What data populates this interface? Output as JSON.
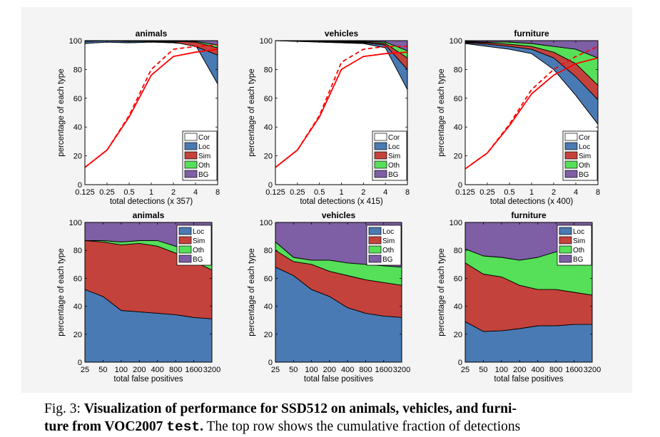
{
  "colors": {
    "cor": "#ffffff",
    "loc": "#4a7ab3",
    "sim": "#c4423c",
    "oth": "#56df59",
    "bg": "#7e5ea4",
    "line": "#ff0000"
  },
  "legend_top": [
    "Cor",
    "Loc",
    "Sim",
    "Oth",
    "BG"
  ],
  "legend_bottom": [
    "Loc",
    "Sim",
    "Oth",
    "BG"
  ],
  "caption": {
    "label": "Fig. 3:",
    "bold_part1": "Visualization of performance for SSD512 on animals, vehicles, and furni-",
    "bold_part2": "ture from VOC2007",
    "code": "test",
    "bold_end": ".",
    "rest": " The top row shows the cumulative fraction of detections"
  },
  "chart_data": [
    {
      "type": "area",
      "title": "animals",
      "xlabel": "total detections (x 357)",
      "ylabel": "percentage of each type",
      "x_scale": "log2",
      "xticks": [
        "0.125",
        "0.25",
        "0.5",
        "1",
        "2",
        "4",
        "8"
      ],
      "x": [
        0.125,
        0.25,
        0.5,
        1,
        2,
        4,
        8
      ],
      "ylim": [
        0,
        100
      ],
      "yticks": [
        0,
        20,
        40,
        60,
        80,
        100
      ],
      "stacked_cumulative": {
        "Cor": [
          98,
          99,
          98.5,
          99,
          98.5,
          97,
          70
        ],
        "Loc": [
          99.5,
          100,
          99.5,
          99.5,
          99,
          96,
          90
        ],
        "Sim": [
          100,
          100,
          100,
          100,
          99.5,
          99,
          95
        ],
        "Oth": [
          100,
          100,
          100,
          100,
          100,
          99.5,
          97
        ],
        "BG": [
          100,
          100,
          100,
          100,
          100,
          100,
          100
        ]
      },
      "recall_weak": [
        12,
        24,
        48,
        80,
        94,
        96,
        97
      ],
      "recall_strong": [
        12,
        24,
        47,
        76,
        89,
        92,
        94
      ]
    },
    {
      "type": "area",
      "title": "vehicles",
      "xlabel": "total detections (x 415)",
      "ylabel": "percentage of each type",
      "x_scale": "log2",
      "xticks": [
        "0.125",
        "0.25",
        "0.5",
        "1",
        "2",
        "4",
        "8"
      ],
      "x": [
        0.125,
        0.25,
        0.5,
        1,
        2,
        4,
        8
      ],
      "ylim": [
        0,
        100
      ],
      "yticks": [
        0,
        20,
        40,
        60,
        80,
        100
      ],
      "stacked_cumulative": {
        "Cor": [
          100,
          99.5,
          99,
          98.5,
          98,
          95,
          66
        ],
        "Loc": [
          100,
          100,
          99.5,
          99,
          98.5,
          97,
          80
        ],
        "Sim": [
          100,
          100,
          100,
          99.5,
          99,
          98,
          88
        ],
        "Oth": [
          100,
          100,
          100,
          100,
          99.5,
          99,
          93
        ],
        "BG": [
          100,
          100,
          100,
          100,
          100,
          100,
          100
        ]
      },
      "recall_weak": [
        12,
        24,
        48,
        85,
        94,
        96,
        96
      ],
      "recall_strong": [
        12,
        24,
        47,
        80,
        89,
        91,
        92
      ]
    },
    {
      "type": "area",
      "title": "furniture",
      "xlabel": "total detections (x 400)",
      "ylabel": "percentage of each type",
      "x_scale": "log2",
      "xticks": [
        "0.125",
        "0.25",
        "0.5",
        "1",
        "2",
        "4",
        "8"
      ],
      "x": [
        0.125,
        0.25,
        0.5,
        1,
        2,
        4,
        8
      ],
      "ylim": [
        0,
        100
      ],
      "yticks": [
        0,
        20,
        40,
        60,
        80,
        100
      ],
      "stacked_cumulative": {
        "Cor": [
          98,
          96,
          94,
          91,
          80,
          62,
          42
        ],
        "Loc": [
          98.5,
          97.5,
          96,
          94,
          88,
          75,
          59
        ],
        "Sim": [
          99,
          98.5,
          97.5,
          96,
          92,
          84,
          69
        ],
        "Oth": [
          99.5,
          99,
          99,
          98,
          96,
          94,
          88
        ],
        "BG": [
          100,
          100,
          100,
          100,
          100,
          100,
          100
        ]
      },
      "recall_weak": [
        11,
        22,
        42,
        66,
        80,
        89,
        96
      ],
      "recall_strong": [
        11,
        22,
        41,
        63,
        76,
        84,
        88
      ]
    },
    {
      "type": "area",
      "title": "animals",
      "xlabel": "total false positives",
      "ylabel": "percentage of each type",
      "x_scale": "log2",
      "xticks": [
        "25",
        "50",
        "100",
        "200",
        "400",
        "800",
        "1600",
        "3200"
      ],
      "x": [
        25,
        50,
        100,
        200,
        400,
        800,
        1600,
        3200
      ],
      "ylim": [
        0,
        100
      ],
      "yticks": [
        0,
        20,
        40,
        60,
        80,
        100
      ],
      "stacked_cumulative": {
        "Loc": [
          52,
          47,
          37,
          36,
          35,
          34,
          32,
          31
        ],
        "Sim": [
          87,
          86,
          84,
          85,
          83,
          78,
          72,
          66
        ],
        "Oth": [
          87,
          87,
          86,
          87,
          87,
          83,
          77,
          70
        ],
        "BG": [
          100,
          100,
          100,
          100,
          100,
          100,
          100,
          100
        ]
      }
    },
    {
      "type": "area",
      "title": "vehicles",
      "xlabel": "total false positives",
      "ylabel": "percentage of each type",
      "x_scale": "log2",
      "xticks": [
        "25",
        "50",
        "100",
        "200",
        "400",
        "800",
        "1600",
        "3200"
      ],
      "x": [
        25,
        50,
        100,
        200,
        400,
        800,
        1600,
        3200
      ],
      "ylim": [
        0,
        100
      ],
      "yticks": [
        0,
        20,
        40,
        60,
        80,
        100
      ],
      "stacked_cumulative": {
        "Loc": [
          68,
          62,
          52,
          47,
          39,
          35,
          33,
          32
        ],
        "Sim": [
          80,
          72,
          70,
          65,
          62,
          59,
          57,
          55
        ],
        "Oth": [
          86,
          75,
          73,
          73,
          71,
          70,
          69,
          68
        ],
        "BG": [
          100,
          100,
          100,
          100,
          100,
          100,
          100,
          100
        ]
      }
    },
    {
      "type": "area",
      "title": "furniture",
      "xlabel": "total false positives",
      "ylabel": "percentage of each type",
      "x_scale": "log2",
      "xticks": [
        "25",
        "50",
        "100",
        "200",
        "400",
        "800",
        "1600",
        "3200"
      ],
      "x": [
        25,
        50,
        100,
        200,
        400,
        800,
        1600,
        3200
      ],
      "ylim": [
        0,
        100
      ],
      "yticks": [
        0,
        20,
        40,
        60,
        80,
        100
      ],
      "stacked_cumulative": {
        "Loc": [
          29,
          22,
          22.5,
          24,
          26,
          26,
          27,
          27
        ],
        "Sim": [
          71,
          63,
          61,
          55,
          52,
          52,
          50,
          48
        ],
        "Oth": [
          81,
          76,
          75,
          73,
          75,
          79,
          79,
          78
        ],
        "BG": [
          100,
          100,
          100,
          100,
          100,
          100,
          100,
          100
        ]
      }
    }
  ]
}
